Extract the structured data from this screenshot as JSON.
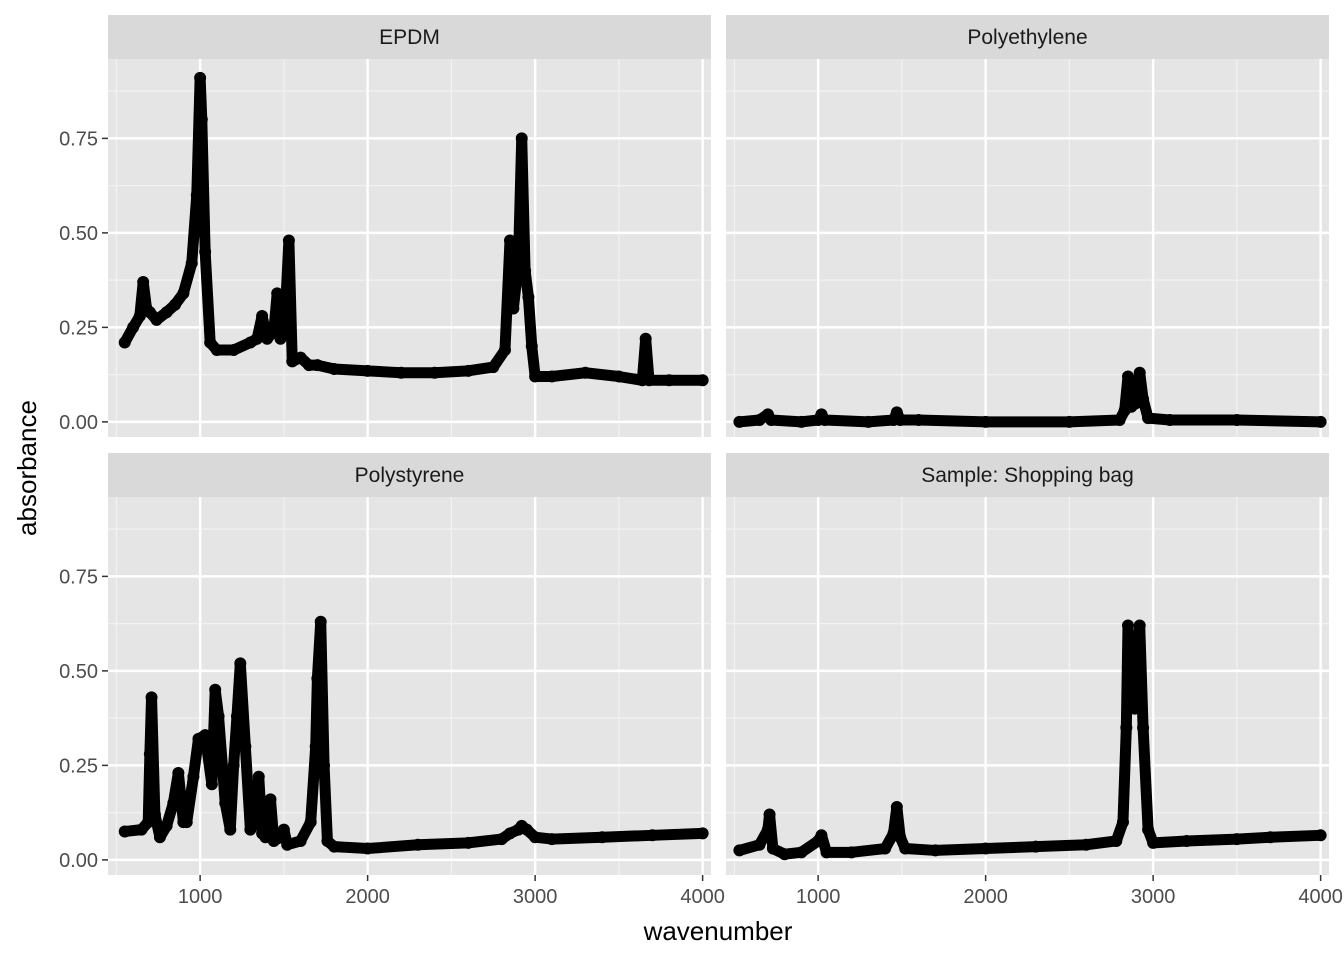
{
  "chart_data": {
    "type": "scatter",
    "layout": "facet-2x2",
    "xlabel": "wavenumber",
    "ylabel": "absorbance",
    "xlim": [
      450,
      4050
    ],
    "ylim": [
      -0.04,
      0.96
    ],
    "xticks": [
      1000,
      2000,
      3000,
      4000
    ],
    "xtick_labels": [
      "1000",
      "2000",
      "3000",
      "4000"
    ],
    "yticks": [
      0.0,
      0.25,
      0.5,
      0.75
    ],
    "ytick_labels": [
      "0.00",
      "0.25",
      "0.50",
      "0.75"
    ],
    "grid": true,
    "background": "#e5e5e5",
    "strip_color": "#d9d9d9",
    "point_color": "#000000",
    "panels": [
      {
        "title": "EPDM",
        "points": [
          [
            550,
            0.21
          ],
          [
            600,
            0.25
          ],
          [
            640,
            0.28
          ],
          [
            660,
            0.37
          ],
          [
            680,
            0.3
          ],
          [
            700,
            0.29
          ],
          [
            740,
            0.27
          ],
          [
            800,
            0.29
          ],
          [
            850,
            0.31
          ],
          [
            900,
            0.34
          ],
          [
            950,
            0.42
          ],
          [
            980,
            0.6
          ],
          [
            1000,
            0.91
          ],
          [
            1010,
            0.8
          ],
          [
            1030,
            0.45
          ],
          [
            1060,
            0.21
          ],
          [
            1100,
            0.19
          ],
          [
            1200,
            0.19
          ],
          [
            1300,
            0.21
          ],
          [
            1340,
            0.22
          ],
          [
            1370,
            0.28
          ],
          [
            1400,
            0.22
          ],
          [
            1440,
            0.24
          ],
          [
            1460,
            0.34
          ],
          [
            1480,
            0.22
          ],
          [
            1510,
            0.3
          ],
          [
            1530,
            0.48
          ],
          [
            1550,
            0.16
          ],
          [
            1600,
            0.17
          ],
          [
            1650,
            0.15
          ],
          [
            1700,
            0.15
          ],
          [
            1800,
            0.14
          ],
          [
            2000,
            0.135
          ],
          [
            2200,
            0.13
          ],
          [
            2400,
            0.13
          ],
          [
            2600,
            0.135
          ],
          [
            2750,
            0.145
          ],
          [
            2820,
            0.19
          ],
          [
            2850,
            0.48
          ],
          [
            2870,
            0.3
          ],
          [
            2900,
            0.42
          ],
          [
            2920,
            0.75
          ],
          [
            2940,
            0.4
          ],
          [
            2960,
            0.33
          ],
          [
            2980,
            0.2
          ],
          [
            3000,
            0.12
          ],
          [
            3100,
            0.12
          ],
          [
            3300,
            0.13
          ],
          [
            3500,
            0.12
          ],
          [
            3640,
            0.11
          ],
          [
            3660,
            0.22
          ],
          [
            3680,
            0.11
          ],
          [
            3800,
            0.11
          ],
          [
            4000,
            0.11
          ]
        ]
      },
      {
        "title": "Polyethylene",
        "points": [
          [
            530,
            0.0
          ],
          [
            650,
            0.005
          ],
          [
            700,
            0.02
          ],
          [
            720,
            0.005
          ],
          [
            900,
            0.0
          ],
          [
            1000,
            0.005
          ],
          [
            1020,
            0.02
          ],
          [
            1040,
            0.005
          ],
          [
            1300,
            0.0
          ],
          [
            1450,
            0.005
          ],
          [
            1470,
            0.025
          ],
          [
            1490,
            0.005
          ],
          [
            1600,
            0.005
          ],
          [
            2000,
            0.0
          ],
          [
            2500,
            0.0
          ],
          [
            2800,
            0.005
          ],
          [
            2830,
            0.03
          ],
          [
            2850,
            0.12
          ],
          [
            2870,
            0.04
          ],
          [
            2900,
            0.05
          ],
          [
            2920,
            0.13
          ],
          [
            2940,
            0.06
          ],
          [
            2970,
            0.01
          ],
          [
            3100,
            0.005
          ],
          [
            3500,
            0.005
          ],
          [
            4000,
            0.0
          ]
        ]
      },
      {
        "title": "Polystyrene",
        "points": [
          [
            550,
            0.075
          ],
          [
            650,
            0.08
          ],
          [
            690,
            0.1
          ],
          [
            700,
            0.28
          ],
          [
            710,
            0.43
          ],
          [
            730,
            0.12
          ],
          [
            760,
            0.06
          ],
          [
            800,
            0.09
          ],
          [
            840,
            0.15
          ],
          [
            870,
            0.23
          ],
          [
            900,
            0.1
          ],
          [
            920,
            0.1
          ],
          [
            960,
            0.22
          ],
          [
            990,
            0.32
          ],
          [
            1030,
            0.33
          ],
          [
            1070,
            0.2
          ],
          [
            1090,
            0.45
          ],
          [
            1110,
            0.38
          ],
          [
            1150,
            0.15
          ],
          [
            1180,
            0.08
          ],
          [
            1200,
            0.25
          ],
          [
            1220,
            0.38
          ],
          [
            1240,
            0.52
          ],
          [
            1270,
            0.3
          ],
          [
            1300,
            0.08
          ],
          [
            1330,
            0.12
          ],
          [
            1350,
            0.22
          ],
          [
            1370,
            0.07
          ],
          [
            1390,
            0.06
          ],
          [
            1420,
            0.16
          ],
          [
            1440,
            0.05
          ],
          [
            1480,
            0.06
          ],
          [
            1500,
            0.08
          ],
          [
            1520,
            0.04
          ],
          [
            1600,
            0.05
          ],
          [
            1660,
            0.1
          ],
          [
            1690,
            0.3
          ],
          [
            1700,
            0.48
          ],
          [
            1720,
            0.63
          ],
          [
            1740,
            0.25
          ],
          [
            1760,
            0.05
          ],
          [
            1800,
            0.035
          ],
          [
            2000,
            0.03
          ],
          [
            2300,
            0.04
          ],
          [
            2600,
            0.045
          ],
          [
            2800,
            0.055
          ],
          [
            2850,
            0.07
          ],
          [
            2900,
            0.08
          ],
          [
            2920,
            0.09
          ],
          [
            2950,
            0.08
          ],
          [
            3000,
            0.06
          ],
          [
            3100,
            0.055
          ],
          [
            3400,
            0.06
          ],
          [
            3700,
            0.065
          ],
          [
            4000,
            0.07
          ]
        ]
      },
      {
        "title": "Sample: Shopping bag",
        "points": [
          [
            530,
            0.025
          ],
          [
            650,
            0.04
          ],
          [
            700,
            0.08
          ],
          [
            710,
            0.12
          ],
          [
            730,
            0.03
          ],
          [
            800,
            0.015
          ],
          [
            900,
            0.02
          ],
          [
            1000,
            0.05
          ],
          [
            1020,
            0.065
          ],
          [
            1050,
            0.02
          ],
          [
            1200,
            0.02
          ],
          [
            1400,
            0.03
          ],
          [
            1450,
            0.07
          ],
          [
            1470,
            0.14
          ],
          [
            1490,
            0.06
          ],
          [
            1520,
            0.03
          ],
          [
            1700,
            0.025
          ],
          [
            2000,
            0.03
          ],
          [
            2300,
            0.035
          ],
          [
            2600,
            0.04
          ],
          [
            2780,
            0.05
          ],
          [
            2820,
            0.1
          ],
          [
            2840,
            0.35
          ],
          [
            2850,
            0.62
          ],
          [
            2870,
            0.45
          ],
          [
            2890,
            0.4
          ],
          [
            2910,
            0.55
          ],
          [
            2920,
            0.62
          ],
          [
            2940,
            0.35
          ],
          [
            2970,
            0.08
          ],
          [
            3000,
            0.045
          ],
          [
            3200,
            0.05
          ],
          [
            3500,
            0.055
          ],
          [
            3700,
            0.06
          ],
          [
            4000,
            0.065
          ]
        ]
      }
    ]
  }
}
